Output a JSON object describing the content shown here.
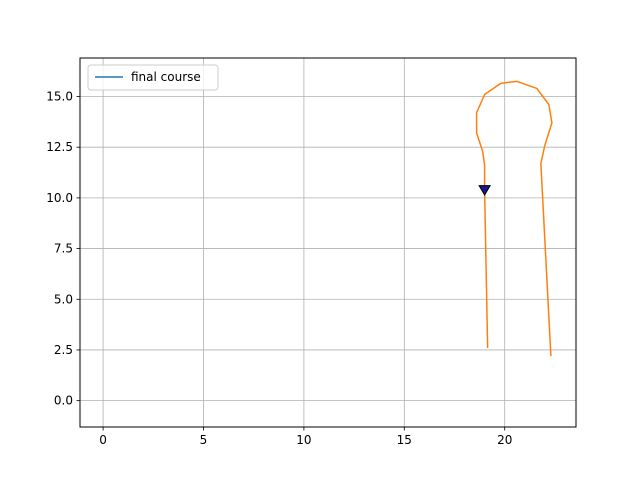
{
  "chart_data": {
    "type": "line",
    "title": "",
    "xlabel": "",
    "ylabel": "",
    "xlim": [
      -1.15,
      23.55
    ],
    "ylim": [
      -1.3,
      16.9
    ],
    "x_ticks": [
      0,
      5,
      10,
      15,
      20
    ],
    "x_tick_labels": [
      "0",
      "5",
      "10",
      "15",
      "20"
    ],
    "y_ticks": [
      0.0,
      2.5,
      5.0,
      7.5,
      10.0,
      12.5,
      15.0
    ],
    "y_tick_labels": [
      "0.0",
      "2.5",
      "5.0",
      "7.5",
      "10.0",
      "12.5",
      "15.0"
    ],
    "grid": true,
    "legend": {
      "placement": "upper-left",
      "entries": [
        {
          "label": "final course",
          "color": "#1f77b4"
        }
      ]
    },
    "series": [
      {
        "name": "final course",
        "color": "#1f77b4",
        "points": []
      },
      {
        "color": "#ff7f0e",
        "points": [
          [
            19.15,
            2.6
          ],
          [
            19.0,
            10.3
          ],
          [
            19.0,
            11.6
          ],
          [
            18.9,
            12.3
          ],
          [
            18.6,
            13.2
          ],
          [
            18.6,
            14.2
          ],
          [
            19.0,
            15.1
          ],
          [
            19.8,
            15.65
          ],
          [
            20.6,
            15.75
          ],
          [
            21.6,
            15.4
          ],
          [
            22.2,
            14.6
          ],
          [
            22.35,
            13.7
          ],
          [
            22.0,
            12.6
          ],
          [
            21.8,
            11.7
          ],
          [
            22.3,
            2.2
          ]
        ]
      }
    ],
    "marker": {
      "x": 19.0,
      "y": 10.4,
      "shape": "triangle-down",
      "color": "#1a1a8a"
    }
  }
}
